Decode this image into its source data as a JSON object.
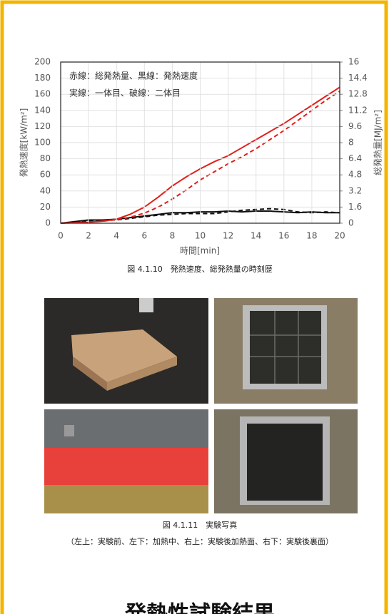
{
  "chart_data": {
    "type": "line",
    "x_label": "時間[min]",
    "y_label": "発熱速度[kW/m²]",
    "y2_label": "総発熱量[MJ/m²]",
    "annotations": [
      "赤線：総発熱量、黒線：発熱速度",
      "実線：一体目、破線：二体目"
    ],
    "x": [
      0,
      1,
      2,
      3,
      4,
      5,
      6,
      7,
      8,
      9,
      10,
      11,
      12,
      13,
      14,
      15,
      16,
      17,
      18,
      19,
      20
    ],
    "xlim": [
      0,
      20
    ],
    "xticks": [
      0,
      2,
      4,
      6,
      8,
      10,
      12,
      14,
      16,
      18,
      20
    ],
    "ylim": [
      0,
      200
    ],
    "yticks": [
      0,
      20,
      40,
      60,
      80,
      100,
      120,
      140,
      160,
      180,
      200
    ],
    "y2lim": [
      0,
      16
    ],
    "y2ticks": [
      0,
      1.6,
      3.2,
      4.8,
      6.4,
      8,
      9.6,
      11.2,
      12.8,
      14.4,
      16
    ],
    "grid": true,
    "series": [
      {
        "color": "#e0201b",
        "dashed": false,
        "axis": "y2",
        "values": [
          0,
          0.05,
          0.1,
          0.2,
          0.4,
          0.9,
          1.6,
          2.6,
          3.7,
          4.6,
          5.4,
          6.1,
          6.7,
          7.5,
          8.3,
          9.1,
          9.9,
          10.8,
          11.7,
          12.6,
          13.5
        ]
      },
      {
        "color": "#e0201b",
        "dashed": true,
        "axis": "y2",
        "values": [
          0,
          0.05,
          0.1,
          0.2,
          0.35,
          0.6,
          1.0,
          1.6,
          2.4,
          3.3,
          4.3,
          5.1,
          5.9,
          6.6,
          7.4,
          8.3,
          9.2,
          10.2,
          11.2,
          12.2,
          13.1
        ]
      },
      {
        "color": "#111111",
        "dashed": false,
        "values": [
          0,
          2,
          4,
          4,
          5,
          7,
          9,
          11,
          13,
          13,
          14,
          14,
          15,
          14,
          15,
          15,
          14,
          13,
          14,
          13,
          13
        ]
      },
      {
        "color": "#111111",
        "dashed": true,
        "values": [
          0,
          1,
          3,
          4,
          4,
          6,
          8,
          10,
          11,
          12,
          12,
          12,
          14,
          16,
          17,
          18,
          17,
          14,
          13,
          14,
          13
        ]
      }
    ]
  },
  "figure_caption": "図 4.1.10　発熱速度、総発熱量の時刻歴",
  "photo_caption": "図 4.1.11　実験写真",
  "photo_note": "（左上：実験前、左下：加熱中、右上：実験後加熱面、右下：実験後裏面）",
  "heading": "発熱性試験結果"
}
